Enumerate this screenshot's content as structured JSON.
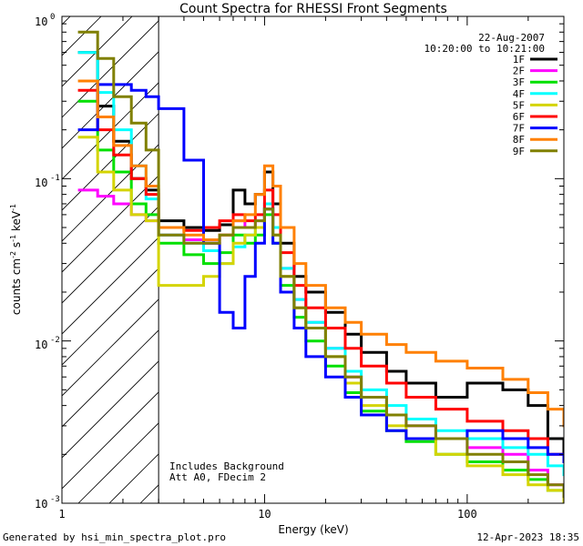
{
  "chart_data": {
    "type": "line",
    "title": "Count Spectra for RHESSI Front Segments",
    "xlabel": "Energy (keV)",
    "ylabel": "counts cm⁻² s⁻¹ keV⁻¹",
    "ylabel_parts": [
      "counts cm",
      "-2",
      " s",
      "-1",
      " keV",
      "-1"
    ],
    "xscale": "log",
    "yscale": "log",
    "xlim": [
      1,
      300
    ],
    "ylim": [
      0.001,
      1
    ],
    "x_tick_labels": [
      "1",
      "10",
      "100"
    ],
    "y_tick_labels": [
      {
        "base": "10",
        "exp": "0"
      },
      {
        "base": "10",
        "exp": "-1"
      },
      {
        "base": "10",
        "exp": "-2"
      },
      {
        "base": "10",
        "exp": "-3"
      }
    ],
    "legend_position": "top-right",
    "date": "22-Aug-2007",
    "time_range": "10:20:00 to 10:21:00",
    "annotations": [
      "Includes Background",
      "Att A0, FDecim 2"
    ],
    "threshold_energy_kev": 3,
    "series": [
      {
        "name": "1F",
        "color": "#000000",
        "x": [
          1.2,
          1.5,
          1.8,
          2.2,
          2.6,
          3.0,
          4.0,
          5.0,
          6.0,
          7.0,
          8.0,
          9.0,
          10.0,
          11.0,
          12.0,
          14.0,
          16.0,
          20.0,
          25.0,
          30.0,
          40.0,
          50.0,
          70.0,
          100.0,
          150.0,
          200.0,
          250.0,
          300.0
        ],
        "values": [
          0.6,
          0.28,
          0.17,
          0.1,
          0.085,
          0.055,
          0.05,
          0.048,
          0.052,
          0.085,
          0.07,
          0.08,
          0.11,
          0.07,
          0.04,
          0.025,
          0.02,
          0.015,
          0.011,
          0.0085,
          0.0065,
          0.0055,
          0.0045,
          0.0055,
          0.005,
          0.004,
          0.0025,
          0.002
        ]
      },
      {
        "name": "2F",
        "color": "#ff00ff",
        "x": [
          1.2,
          1.5,
          1.8,
          2.2,
          2.6,
          3.0,
          4.0,
          5.0,
          6.0,
          7.0,
          8.0,
          9.0,
          10.0,
          11.0,
          12.0,
          14.0,
          16.0,
          20.0,
          25.0,
          30.0,
          40.0,
          50.0,
          70.0,
          100.0,
          150.0,
          200.0,
          250.0,
          300.0
        ],
        "values": [
          0.085,
          0.078,
          0.07,
          0.06,
          0.055,
          0.045,
          0.042,
          0.04,
          0.045,
          0.055,
          0.05,
          0.055,
          0.07,
          0.05,
          0.028,
          0.018,
          0.013,
          0.009,
          0.006,
          0.0045,
          0.0035,
          0.003,
          0.0025,
          0.0022,
          0.002,
          0.0016,
          0.0013,
          0.0011
        ]
      },
      {
        "name": "3F",
        "color": "#00e000",
        "x": [
          1.2,
          1.5,
          1.8,
          2.2,
          2.6,
          3.0,
          4.0,
          5.0,
          6.0,
          7.0,
          8.0,
          9.0,
          10.0,
          11.0,
          12.0,
          14.0,
          16.0,
          20.0,
          25.0,
          30.0,
          40.0,
          50.0,
          70.0,
          100.0,
          150.0,
          200.0,
          250.0,
          300.0
        ],
        "values": [
          0.3,
          0.15,
          0.11,
          0.07,
          0.06,
          0.04,
          0.034,
          0.03,
          0.035,
          0.045,
          0.04,
          0.045,
          0.06,
          0.04,
          0.022,
          0.014,
          0.01,
          0.007,
          0.0048,
          0.0037,
          0.0028,
          0.0024,
          0.002,
          0.0018,
          0.0016,
          0.0014,
          0.0012,
          0.001
        ]
      },
      {
        "name": "4F",
        "color": "#00ffff",
        "x": [
          1.2,
          1.5,
          1.8,
          2.2,
          2.6,
          3.0,
          4.0,
          5.0,
          6.0,
          7.0,
          8.0,
          9.0,
          10.0,
          11.0,
          12.0,
          14.0,
          16.0,
          20.0,
          25.0,
          30.0,
          40.0,
          50.0,
          70.0,
          100.0,
          150.0,
          200.0,
          250.0,
          300.0
        ],
        "values": [
          0.6,
          0.34,
          0.2,
          0.12,
          0.075,
          0.045,
          0.04,
          0.036,
          0.03,
          0.038,
          0.045,
          0.05,
          0.07,
          0.05,
          0.028,
          0.018,
          0.013,
          0.009,
          0.0065,
          0.005,
          0.004,
          0.0033,
          0.0028,
          0.0025,
          0.0022,
          0.002,
          0.0017,
          0.0015
        ]
      },
      {
        "name": "5F",
        "color": "#d4d400",
        "x": [
          1.2,
          1.5,
          1.8,
          2.2,
          2.6,
          3.0,
          4.0,
          5.0,
          6.0,
          7.0,
          8.0,
          9.0,
          10.0,
          11.0,
          12.0,
          14.0,
          16.0,
          20.0,
          25.0,
          30.0,
          40.0,
          50.0,
          70.0,
          100.0,
          150.0,
          200.0,
          250.0,
          300.0
        ],
        "values": [
          0.18,
          0.11,
          0.085,
          0.06,
          0.055,
          0.022,
          0.022,
          0.025,
          0.03,
          0.04,
          0.045,
          0.05,
          0.065,
          0.045,
          0.025,
          0.016,
          0.012,
          0.008,
          0.0055,
          0.004,
          0.003,
          0.0025,
          0.002,
          0.0017,
          0.0015,
          0.0013,
          0.0012,
          0.001
        ]
      },
      {
        "name": "6F",
        "color": "#ff0000",
        "x": [
          1.2,
          1.5,
          1.8,
          2.2,
          2.6,
          3.0,
          4.0,
          5.0,
          6.0,
          7.0,
          8.0,
          9.0,
          10.0,
          11.0,
          12.0,
          14.0,
          16.0,
          20.0,
          25.0,
          30.0,
          40.0,
          50.0,
          70.0,
          100.0,
          150.0,
          200.0,
          250.0,
          300.0
        ],
        "values": [
          0.35,
          0.2,
          0.14,
          0.1,
          0.08,
          0.05,
          0.048,
          0.05,
          0.055,
          0.06,
          0.055,
          0.06,
          0.085,
          0.06,
          0.035,
          0.022,
          0.016,
          0.012,
          0.009,
          0.007,
          0.0055,
          0.0045,
          0.0038,
          0.0032,
          0.0028,
          0.0025,
          0.002,
          0.0018
        ]
      },
      {
        "name": "7F",
        "color": "#0000ff",
        "x": [
          1.2,
          1.5,
          1.8,
          2.2,
          2.6,
          3.0,
          4.0,
          5.0,
          6.0,
          7.0,
          8.0,
          9.0,
          10.0,
          11.0,
          12.0,
          14.0,
          16.0,
          20.0,
          25.0,
          30.0,
          40.0,
          50.0,
          70.0,
          100.0,
          150.0,
          200.0,
          250.0,
          300.0
        ],
        "values": [
          0.2,
          0.38,
          0.38,
          0.35,
          0.32,
          0.27,
          0.13,
          0.04,
          0.015,
          0.012,
          0.025,
          0.04,
          0.065,
          0.04,
          0.02,
          0.012,
          0.008,
          0.006,
          0.0045,
          0.0035,
          0.0028,
          0.0025,
          0.0025,
          0.0028,
          0.0025,
          0.0022,
          0.002,
          0.0018
        ]
      },
      {
        "name": "8F",
        "color": "#ff8000",
        "x": [
          1.2,
          1.5,
          1.8,
          2.2,
          2.6,
          3.0,
          4.0,
          5.0,
          6.0,
          7.0,
          8.0,
          9.0,
          10.0,
          11.0,
          12.0,
          14.0,
          16.0,
          20.0,
          25.0,
          30.0,
          40.0,
          50.0,
          70.0,
          100.0,
          150.0,
          200.0,
          250.0,
          300.0
        ],
        "values": [
          0.4,
          0.24,
          0.16,
          0.12,
          0.09,
          0.05,
          0.045,
          0.042,
          0.045,
          0.055,
          0.06,
          0.08,
          0.12,
          0.09,
          0.05,
          0.03,
          0.022,
          0.016,
          0.013,
          0.011,
          0.0095,
          0.0085,
          0.0075,
          0.0068,
          0.0058,
          0.0048,
          0.0038,
          0.003
        ]
      },
      {
        "name": "9F",
        "color": "#808000",
        "x": [
          1.2,
          1.5,
          1.8,
          2.2,
          2.6,
          3.0,
          4.0,
          5.0,
          6.0,
          7.0,
          8.0,
          9.0,
          10.0,
          11.0,
          12.0,
          14.0,
          16.0,
          20.0,
          25.0,
          30.0,
          40.0,
          50.0,
          70.0,
          100.0,
          150.0,
          200.0,
          250.0,
          300.0
        ],
        "values": [
          0.8,
          0.55,
          0.32,
          0.22,
          0.15,
          0.045,
          0.04,
          0.04,
          0.045,
          0.05,
          0.05,
          0.055,
          0.065,
          0.045,
          0.025,
          0.016,
          0.012,
          0.008,
          0.006,
          0.0045,
          0.0035,
          0.003,
          0.0025,
          0.002,
          0.0018,
          0.0015,
          0.0013,
          0.0011
        ]
      }
    ]
  },
  "footer": {
    "generated_by": "Generated by hsi_min_spectra_plot.pro",
    "timestamp": "12-Apr-2023 18:35"
  }
}
